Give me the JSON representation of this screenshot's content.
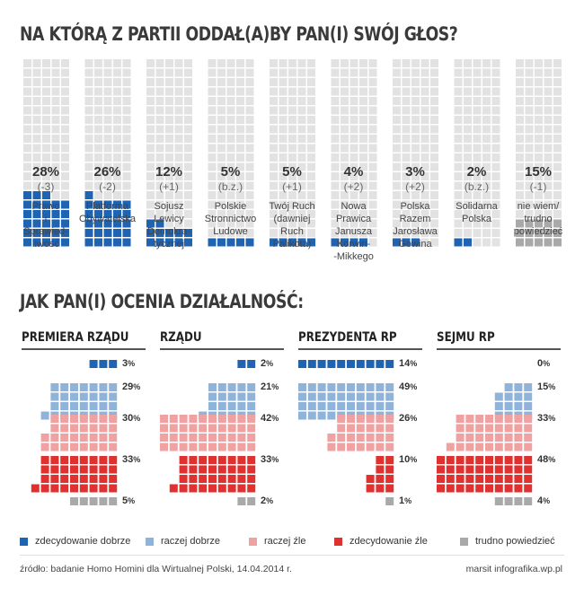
{
  "header": {
    "title1": "NA KTÓRĄ Z PARTII ODDAŁ(A)BY PAN(I) SWÓJ GŁOS?",
    "title2": "JAK PAN(I) OCENIA DZIAŁALNOŚĆ:"
  },
  "colors": {
    "empty": "#e2e2e2",
    "party": "#1f63b3",
    "undecided": "#a9a9a9",
    "zdecydowanie_dobrze": "#1f63b3",
    "raczej_dobrze": "#8fb3d9",
    "raczej_zle": "#f0a1a1",
    "zdecydowanie_zle": "#e03131",
    "trudno_powiedziec": "#a9a9a9"
  },
  "chart_data": [
    {
      "type": "bar",
      "title": "NA KTÓRĄ Z PARTII ODDAŁ(A)BY PAN(I) SWÓJ GŁOS?",
      "categories": [
        "Prawo i Sprawiedliwość",
        "Platforma Obywatelska",
        "Sojusz Lewicy Demokratycznej",
        "Polskie Stronnictwo Ludowe",
        "Twój Ruch (dawniej Ruch Palikota)",
        "Nowa Prawica Janusza Korwin-Mikkego",
        "Polska Razem Jarosława Gowina",
        "Solidarna Polska",
        "nie wiem/ trudno powiedzieć"
      ],
      "values": [
        28,
        26,
        12,
        5,
        5,
        4,
        3,
        2,
        15
      ],
      "parties": [
        {
          "pct": "28%",
          "change": "(-3)",
          "name_lines": [
            "Prawo",
            "i",
            "Sprawied-",
            "liwość"
          ]
        },
        {
          "pct": "26%",
          "change": "(-2)",
          "name_lines": [
            "Platforma",
            "Obywatelska"
          ]
        },
        {
          "pct": "12%",
          "change": "(+1)",
          "name_lines": [
            "Sojusz",
            "Lewicy",
            "Demokra-",
            "tycznej"
          ]
        },
        {
          "pct": "5%",
          "change": "(b.z.)",
          "name_lines": [
            "Polskie",
            "Stronnictwo",
            "Ludowe"
          ]
        },
        {
          "pct": "5%",
          "change": "(+1)",
          "name_lines": [
            "Twój Ruch",
            "(dawniej",
            "Ruch",
            "Palikota)"
          ]
        },
        {
          "pct": "4%",
          "change": "(+2)",
          "name_lines": [
            "Nowa",
            "Prawica",
            "Janusza",
            "Korwin-",
            "-Mikkego"
          ]
        },
        {
          "pct": "3%",
          "change": "(+2)",
          "name_lines": [
            "Polska",
            "Razem",
            "Jarosława",
            "Gowina"
          ]
        },
        {
          "pct": "2%",
          "change": "(b.z.)",
          "name_lines": [
            "Solidarna",
            "Polska"
          ]
        },
        {
          "pct": "15%",
          "change": "(-1)",
          "name_lines": [
            "nie wiem/",
            "trudno",
            "powiedzieć"
          ]
        }
      ]
    },
    {
      "type": "bar",
      "title": "JAK PAN(I) OCENIA DZIAŁALNOŚĆ:",
      "series_names": [
        "zdecydowanie dobrze",
        "raczej dobrze",
        "raczej źle",
        "zdecydowanie źle",
        "trudno powiedzieć"
      ],
      "panels": [
        {
          "title": "PREMIERA RZĄDU",
          "values": [
            3,
            29,
            30,
            33,
            5
          ]
        },
        {
          "title": "RZĄDU",
          "values": [
            2,
            21,
            42,
            33,
            2
          ]
        },
        {
          "title": "PREZYDENTA RP",
          "values": [
            14,
            49,
            26,
            10,
            1
          ]
        },
        {
          "title": "SEJMU RP",
          "values": [
            0,
            15,
            33,
            48,
            4
          ]
        }
      ]
    }
  ],
  "legend": [
    {
      "label": "zdecydowanie dobrze",
      "color": "#1f63b3"
    },
    {
      "label": "raczej dobrze",
      "color": "#8fb3d9"
    },
    {
      "label": "raczej źle",
      "color": "#f0a1a1"
    },
    {
      "label": "zdecydowanie źle",
      "color": "#e03131"
    },
    {
      "label": "trudno powiedzieć",
      "color": "#a9a9a9"
    }
  ],
  "footer": {
    "source": "źródło: badanie Homo Homini dla Wirtualnej Polski, 14.04.2014 r.",
    "credit": "marsit infografika.wp.pl"
  }
}
